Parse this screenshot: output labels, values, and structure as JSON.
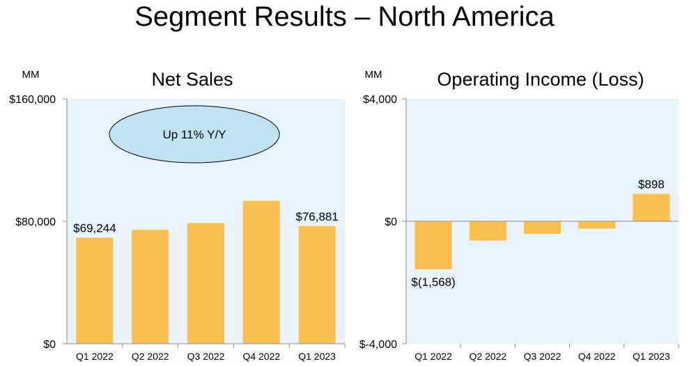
{
  "page_title": "Segment Results – North America",
  "chart_data": [
    {
      "type": "bar",
      "title": "Net Sales",
      "unit_label": "MM",
      "categories": [
        "Q1 2022",
        "Q2 2022",
        "Q3 2022",
        "Q4 2022",
        "Q1 2023"
      ],
      "values": [
        69244,
        74430,
        78843,
        93363,
        76881
      ],
      "data_labels": [
        "$69,244",
        null,
        null,
        null,
        "$76,881"
      ],
      "ylim": [
        0,
        160000
      ],
      "yticks": [
        0,
        80000,
        160000
      ],
      "ytick_labels": [
        "$0",
        "$80,000",
        "$160,000"
      ],
      "annotation": "Up 11% Y/Y",
      "colors": {
        "bar": "#fbbf4f",
        "plot_bg": "#eaf2fd",
        "axis": "#8c8c8c",
        "annotation_fill": "#bfe3f5"
      }
    },
    {
      "type": "bar",
      "title": "Operating Income (Loss)",
      "unit_label": "MM",
      "categories": [
        "Q1 2022",
        "Q2 2022",
        "Q3 2022",
        "Q4 2022",
        "Q1 2023"
      ],
      "values": [
        -1568,
        -627,
        -412,
        -240,
        898
      ],
      "data_labels": [
        "$(1,568)",
        null,
        null,
        null,
        "$898"
      ],
      "ylim": [
        -4000,
        4000
      ],
      "yticks": [
        -4000,
        0,
        4000
      ],
      "ytick_labels": [
        "$-4,000",
        "$0",
        "$4,000"
      ],
      "colors": {
        "bar": "#fbbf4f",
        "plot_bg": "#eaf2fd",
        "axis": "#8c8c8c"
      }
    }
  ]
}
